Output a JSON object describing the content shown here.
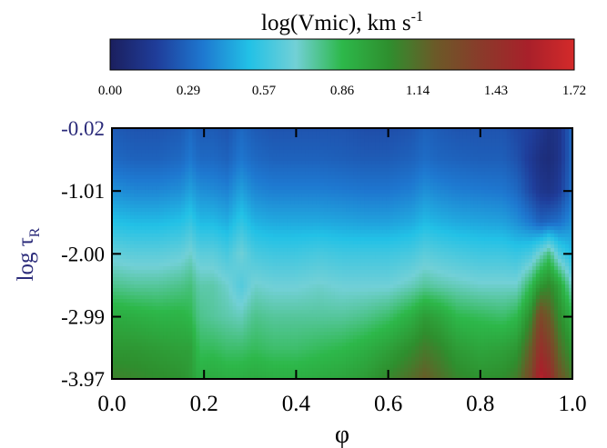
{
  "chart_data": {
    "type": "heatmap",
    "colorbar": {
      "title_main": "log(Vmic), km s",
      "title_sup": "-1",
      "range": [
        0.0,
        1.72
      ],
      "ticks": [
        "0.00",
        "0.29",
        "0.57",
        "0.86",
        "1.14",
        "1.43",
        "1.72"
      ],
      "tick_values": [
        0.0,
        0.29,
        0.57,
        0.86,
        1.14,
        1.43,
        1.72
      ],
      "colors": [
        "#1b1f5e",
        "#1f3d9a",
        "#1e78d0",
        "#22c1e6",
        "#72d0d6",
        "#2db84a",
        "#2e8f2e",
        "#6b5a28",
        "#8a3a2a",
        "#a8202a",
        "#d42a2a"
      ]
    },
    "x": {
      "label": "φ",
      "range": [
        0.0,
        1.0
      ],
      "tick_labels": [
        "0.0",
        "0.2",
        "0.4",
        "0.6",
        "0.8",
        "1.0"
      ],
      "tick_values": [
        0.0,
        0.2,
        0.4,
        0.6,
        0.8,
        1.0
      ]
    },
    "y": {
      "label_main": "log τ",
      "label_sub": "R",
      "range": [
        -0.02,
        -3.97
      ],
      "tick_labels": [
        "-0.02",
        "-1.01",
        "-2.00",
        "-2.99",
        "-3.97"
      ],
      "tick_values": [
        -0.02,
        -1.01,
        -2.0,
        -2.99,
        -3.97
      ]
    },
    "surface": {
      "phase": [
        0.0,
        0.05,
        0.1,
        0.15,
        0.17,
        0.19,
        0.22,
        0.25,
        0.28,
        0.31,
        0.35,
        0.4,
        0.45,
        0.5,
        0.55,
        0.6,
        0.65,
        0.68,
        0.71,
        0.75,
        0.8,
        0.85,
        0.88,
        0.91,
        0.93,
        0.95,
        0.97,
        1.0
      ],
      "log_tau": [
        -0.02,
        -0.5,
        -1.01,
        -1.5,
        -2.0,
        -2.5,
        -2.99,
        -3.5,
        -3.97
      ],
      "log_vmic": [
        [
          0.26,
          0.24,
          0.24,
          0.26,
          0.3,
          0.26,
          0.26,
          0.24,
          0.3,
          0.26,
          0.24,
          0.24,
          0.24,
          0.24,
          0.22,
          0.22,
          0.24,
          0.28,
          0.26,
          0.24,
          0.24,
          0.24,
          0.2,
          0.18,
          0.14,
          0.1,
          0.12,
          0.3
        ],
        [
          0.3,
          0.28,
          0.28,
          0.3,
          0.34,
          0.3,
          0.3,
          0.28,
          0.34,
          0.3,
          0.28,
          0.28,
          0.28,
          0.27,
          0.26,
          0.26,
          0.28,
          0.31,
          0.29,
          0.28,
          0.27,
          0.27,
          0.23,
          0.15,
          0.1,
          0.08,
          0.12,
          0.3
        ],
        [
          0.4,
          0.38,
          0.38,
          0.4,
          0.44,
          0.4,
          0.39,
          0.37,
          0.44,
          0.38,
          0.36,
          0.36,
          0.36,
          0.35,
          0.34,
          0.34,
          0.36,
          0.4,
          0.38,
          0.36,
          0.35,
          0.34,
          0.3,
          0.2,
          0.14,
          0.12,
          0.16,
          0.32
        ],
        [
          0.52,
          0.5,
          0.5,
          0.52,
          0.56,
          0.5,
          0.5,
          0.47,
          0.55,
          0.48,
          0.46,
          0.46,
          0.46,
          0.45,
          0.44,
          0.44,
          0.46,
          0.5,
          0.48,
          0.46,
          0.45,
          0.44,
          0.4,
          0.34,
          0.28,
          0.3,
          0.32,
          0.4
        ],
        [
          0.66,
          0.64,
          0.64,
          0.66,
          0.7,
          0.64,
          0.64,
          0.6,
          0.68,
          0.6,
          0.58,
          0.58,
          0.6,
          0.58,
          0.58,
          0.58,
          0.6,
          0.64,
          0.62,
          0.6,
          0.58,
          0.58,
          0.56,
          0.6,
          0.7,
          0.8,
          0.62,
          0.5
        ],
        [
          0.78,
          0.76,
          0.76,
          0.78,
          0.8,
          0.74,
          0.74,
          0.7,
          0.62,
          0.7,
          0.68,
          0.68,
          0.7,
          0.68,
          0.68,
          0.68,
          0.72,
          0.76,
          0.74,
          0.72,
          0.7,
          0.7,
          0.7,
          0.85,
          1.0,
          1.05,
          0.95,
          0.7
        ],
        [
          0.92,
          0.9,
          0.88,
          0.88,
          0.86,
          0.78,
          0.76,
          0.74,
          0.72,
          0.78,
          0.76,
          0.76,
          0.76,
          0.76,
          0.78,
          0.82,
          0.9,
          0.98,
          0.94,
          0.86,
          0.84,
          0.82,
          0.86,
          1.05,
          1.3,
          1.2,
          1.05,
          0.9
        ],
        [
          1.0,
          1.0,
          0.98,
          0.96,
          0.96,
          0.84,
          0.84,
          0.82,
          0.82,
          0.84,
          0.82,
          0.82,
          0.84,
          0.86,
          0.9,
          0.96,
          1.04,
          1.1,
          1.06,
          0.98,
          0.94,
          0.96,
          1.0,
          1.2,
          1.45,
          1.35,
          1.15,
          1.0
        ],
        [
          1.08,
          1.06,
          1.04,
          1.02,
          0.98,
          0.9,
          0.92,
          0.9,
          0.9,
          0.92,
          0.9,
          0.9,
          0.92,
          0.94,
          0.98,
          1.06,
          1.14,
          1.2,
          1.14,
          1.06,
          1.02,
          1.04,
          1.1,
          1.3,
          1.6,
          1.5,
          1.25,
          1.1
        ]
      ]
    }
  }
}
